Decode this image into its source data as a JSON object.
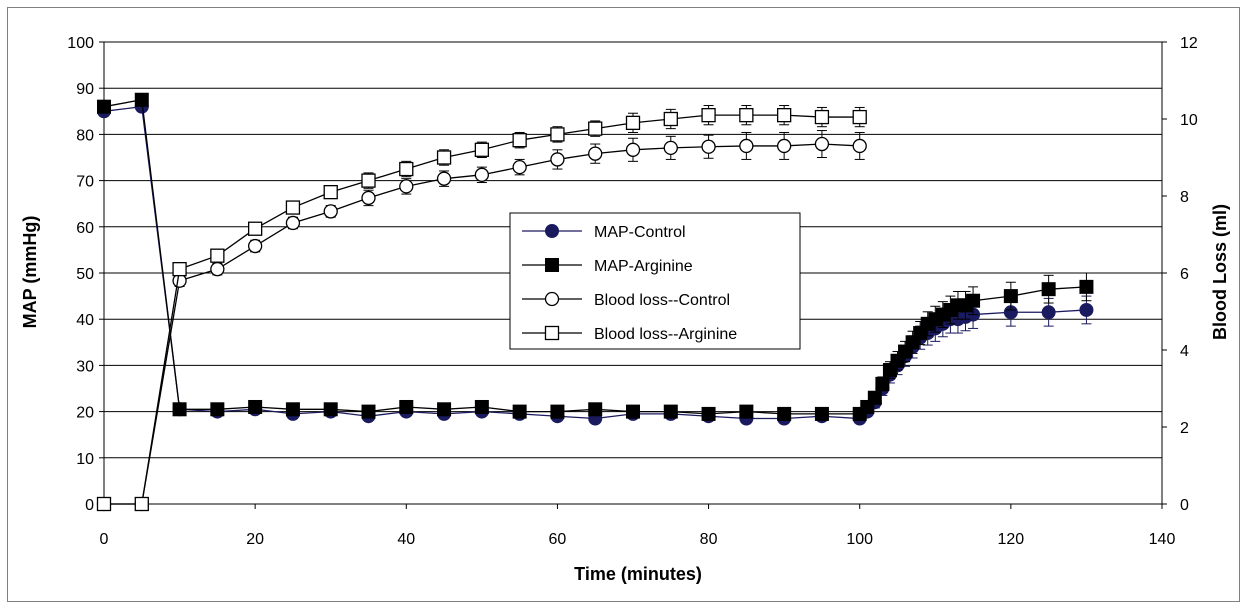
{
  "chart_data": {
    "type": "line",
    "xlabel": "Time (minutes)",
    "ylabel": "MAP (mmHg)",
    "y2label": "Blood Loss (ml)",
    "xlim": [
      0,
      140
    ],
    "ylim": [
      0,
      100
    ],
    "y2lim": [
      0,
      12
    ],
    "x_ticks": [
      "0",
      "20",
      "40",
      "60",
      "80",
      "100",
      "120",
      "140"
    ],
    "y_ticks": [
      "0",
      "10",
      "20",
      "30",
      "40",
      "50",
      "60",
      "70",
      "80",
      "90",
      "100"
    ],
    "y2_ticks": [
      "0",
      "2",
      "4",
      "6",
      "8",
      "10",
      "12"
    ],
    "grid": "horizontal",
    "legend_position": "center",
    "series": [
      {
        "name": "MAP-Control",
        "axis": "left",
        "marker": "filled-circle",
        "color": "#1a1a5e",
        "x": [
          0,
          5,
          10,
          15,
          20,
          25,
          30,
          35,
          40,
          45,
          50,
          55,
          60,
          65,
          70,
          75,
          80,
          85,
          90,
          95,
          100,
          101,
          102,
          103,
          104,
          105,
          106,
          107,
          108,
          109,
          110,
          111,
          112,
          113,
          114,
          115,
          120,
          125,
          130
        ],
        "values": [
          85,
          86,
          20.5,
          20,
          20.5,
          19.5,
          20,
          19,
          20,
          19.5,
          20,
          19.5,
          19,
          18.5,
          19.5,
          19.5,
          19,
          18.5,
          18.5,
          19,
          18.5,
          20,
          22,
          25,
          28,
          30,
          32,
          34,
          36,
          37,
          38,
          39,
          40,
          40,
          40.5,
          41,
          41.5,
          41.5,
          42
        ],
        "error": [
          0,
          0,
          0.8,
          0.8,
          0.8,
          0.8,
          0.8,
          0.8,
          0.8,
          0.8,
          0.8,
          0.8,
          0.8,
          0.8,
          0.8,
          0.8,
          0.8,
          0.8,
          0.8,
          0.8,
          0.8,
          1,
          1.2,
          1.5,
          1.8,
          2,
          2.2,
          2.4,
          2.5,
          2.6,
          2.8,
          2.8,
          3,
          3,
          3,
          3,
          3,
          3,
          3
        ]
      },
      {
        "name": "MAP-Arginine",
        "axis": "left",
        "marker": "filled-square",
        "color": "#000000",
        "x": [
          0,
          5,
          10,
          15,
          20,
          25,
          30,
          35,
          40,
          45,
          50,
          55,
          60,
          65,
          70,
          75,
          80,
          85,
          90,
          95,
          100,
          101,
          102,
          103,
          104,
          105,
          106,
          107,
          108,
          109,
          110,
          111,
          112,
          113,
          114,
          115,
          120,
          125,
          130
        ],
        "values": [
          86,
          87.5,
          20.5,
          20.5,
          21,
          20.5,
          20.5,
          20,
          21,
          20.5,
          21,
          20,
          20,
          20.5,
          20,
          20,
          19.5,
          20,
          19.5,
          19.5,
          19.5,
          21,
          23,
          26,
          29,
          31,
          33,
          35,
          37,
          39,
          40,
          41,
          42,
          43,
          43,
          44,
          45,
          46.5,
          47
        ],
        "error": [
          0,
          0,
          0.8,
          0.8,
          0.8,
          0.8,
          0.8,
          0.8,
          0.8,
          0.8,
          0.8,
          0.8,
          0.8,
          0.8,
          0.8,
          0.8,
          0.8,
          0.8,
          0.8,
          0.8,
          0.8,
          1,
          1.2,
          1.5,
          1.8,
          2,
          2.2,
          2.4,
          2.5,
          2.6,
          2.8,
          2.8,
          3,
          3,
          3,
          3,
          3,
          3,
          3
        ]
      },
      {
        "name": "Blood loss--Control",
        "axis": "right",
        "marker": "open-circle",
        "color": "#000000",
        "x": [
          0,
          5,
          10,
          15,
          20,
          25,
          30,
          35,
          40,
          45,
          50,
          55,
          60,
          65,
          70,
          75,
          80,
          85,
          90,
          95,
          100
        ],
        "values": [
          0,
          0,
          5.8,
          6.1,
          6.7,
          7.3,
          7.6,
          7.95,
          8.25,
          8.45,
          8.55,
          8.75,
          8.95,
          9.1,
          9.2,
          9.25,
          9.28,
          9.3,
          9.3,
          9.35,
          9.3
        ],
        "error": [
          0,
          0,
          0.15,
          0.15,
          0.15,
          0.15,
          0.15,
          0.2,
          0.2,
          0.2,
          0.2,
          0.2,
          0.25,
          0.25,
          0.3,
          0.3,
          0.3,
          0.35,
          0.35,
          0.35,
          0.35
        ]
      },
      {
        "name": "Blood loss--Arginine",
        "axis": "right",
        "marker": "open-square",
        "color": "#000000",
        "x": [
          0,
          5,
          10,
          15,
          20,
          25,
          30,
          35,
          40,
          45,
          50,
          55,
          60,
          65,
          70,
          75,
          80,
          85,
          90,
          95,
          100
        ],
        "values": [
          0,
          0,
          6.1,
          6.45,
          7.15,
          7.7,
          8.1,
          8.4,
          8.7,
          9.0,
          9.2,
          9.45,
          9.6,
          9.75,
          9.9,
          10.0,
          10.1,
          10.1,
          10.1,
          10.05,
          10.05
        ],
        "error": [
          0,
          0,
          0.15,
          0.15,
          0.15,
          0.15,
          0.15,
          0.2,
          0.2,
          0.2,
          0.2,
          0.2,
          0.2,
          0.2,
          0.25,
          0.25,
          0.25,
          0.25,
          0.25,
          0.25,
          0.25
        ]
      }
    ]
  }
}
